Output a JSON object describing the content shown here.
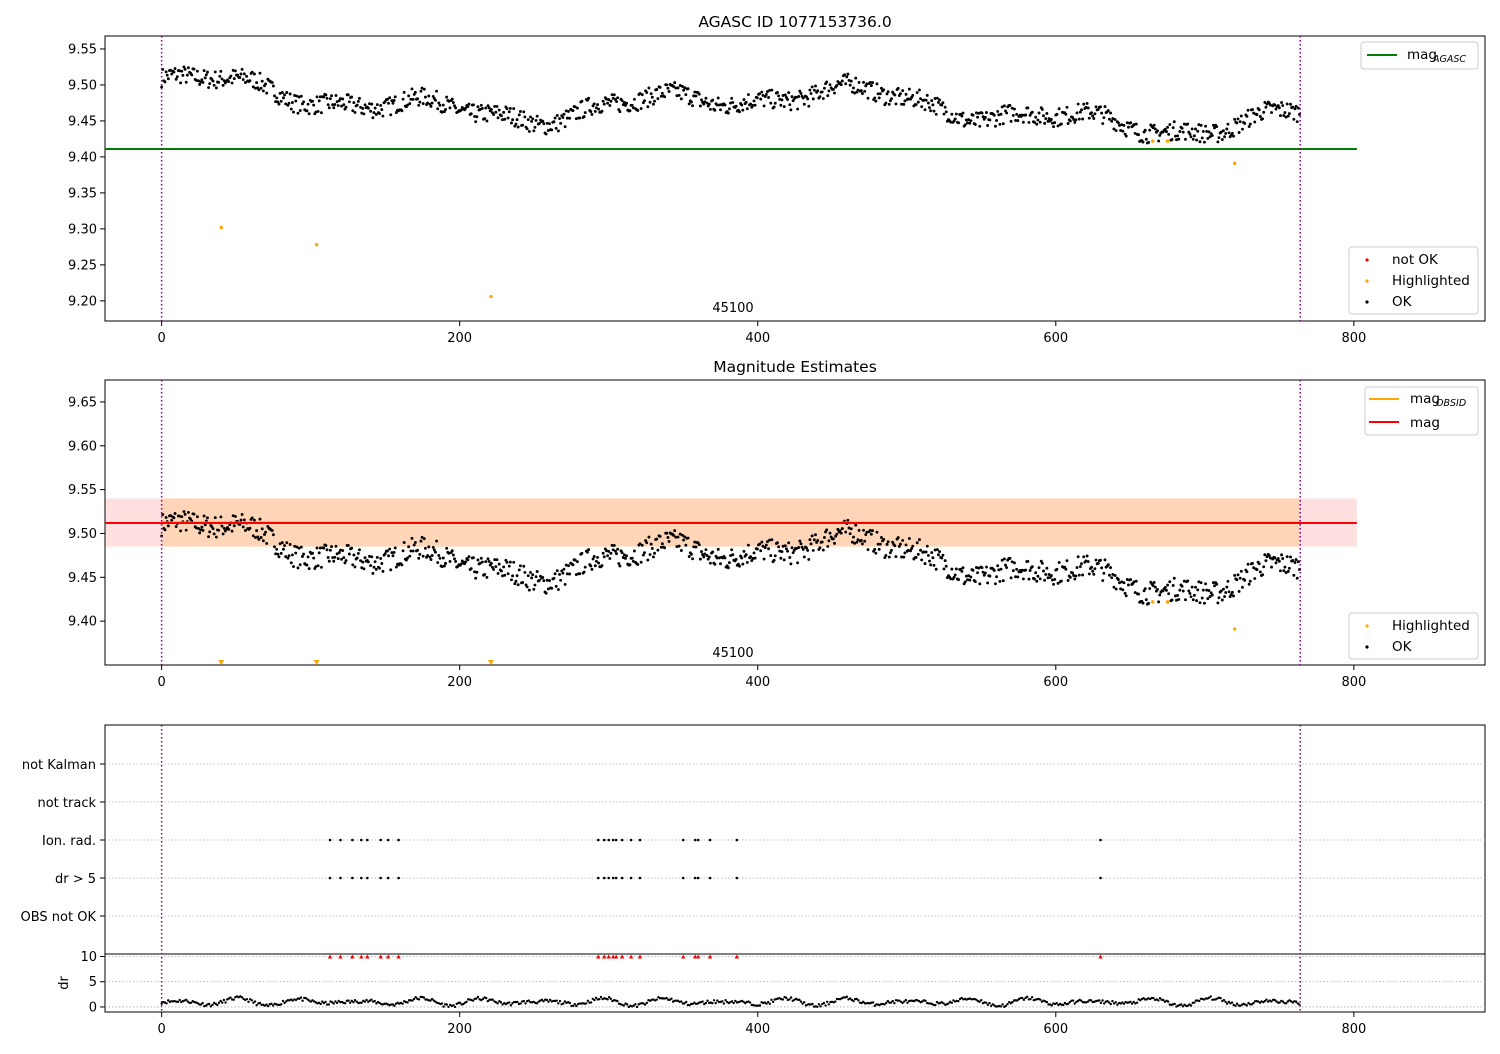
{
  "chart_data": [
    {
      "type": "scatter",
      "title": "AGASC ID 1077153736.0",
      "xlim": [
        -38,
        888
      ],
      "ylim": [
        9.172,
        9.568
      ],
      "xticks": [
        0,
        200,
        400,
        600,
        800
      ],
      "yticks": [
        9.2,
        9.25,
        9.3,
        9.35,
        9.4,
        9.45,
        9.5,
        9.55
      ],
      "annotation": "45100",
      "legend_top": [
        {
          "label": "mag",
          "sub": "AGASC",
          "color": "#008000"
        }
      ],
      "legend_bottom": [
        {
          "label": "not OK",
          "color": "#ff0000"
        },
        {
          "label": "Highlighted",
          "color": "#ffa500"
        },
        {
          "label": "OK",
          "color": "#000000"
        }
      ],
      "mag_agasc": 9.411,
      "mag_agasc_range": [
        -38,
        802
      ],
      "obs_boundaries": [
        0,
        764
      ],
      "highlighted": [
        [
          40,
          9.302
        ],
        [
          104,
          9.278
        ],
        [
          221,
          9.206
        ],
        [
          665,
          9.422
        ],
        [
          675,
          9.422
        ],
        [
          720,
          9.391
        ]
      ]
    },
    {
      "type": "scatter",
      "title": "Magnitude Estimates",
      "xlim": [
        -38,
        888
      ],
      "ylim": [
        9.35,
        9.675
      ],
      "xticks": [
        0,
        200,
        400,
        600,
        800
      ],
      "yticks": [
        9.4,
        9.45,
        9.5,
        9.55,
        9.6,
        9.65
      ],
      "annotation": "45100",
      "legend_top": [
        {
          "label": "mag",
          "sub": "OBSID",
          "color": "#ffa500"
        },
        {
          "label": "mag",
          "sub": "",
          "color": "#ff0000"
        }
      ],
      "legend_bottom": [
        {
          "label": "Highlighted",
          "color": "#ffa500"
        },
        {
          "label": "OK",
          "color": "#000000"
        }
      ],
      "mag": 9.512,
      "mag_band": [
        9.485,
        9.54
      ],
      "obsid_band": [
        9.485,
        9.54
      ],
      "obs_boundaries": [
        0,
        764
      ],
      "highlighted": [
        [
          665,
          9.422
        ],
        [
          675,
          9.422
        ],
        [
          720,
          9.391
        ]
      ],
      "below_axis_markers": [
        40,
        104,
        221
      ]
    },
    {
      "type": "scatter",
      "title": "",
      "xlim": [
        -38,
        888
      ],
      "xticks": [
        0,
        200,
        400,
        600,
        800
      ],
      "flag_labels": [
        "not Kalman",
        "not track",
        "Ion. rad.",
        "dr > 5",
        "OBS not OK"
      ],
      "flag_points": [
        113,
        120,
        128,
        134,
        138,
        147,
        152,
        159,
        293,
        297,
        300,
        303,
        305,
        309,
        315,
        321,
        350,
        358,
        360,
        368,
        386,
        630
      ],
      "dr_ylabel": "dr",
      "dr_yticks": [
        0,
        5,
        10
      ],
      "dr_ylim": [
        -1,
        10.5
      ],
      "obs_boundaries": [
        0,
        764
      ]
    }
  ]
}
